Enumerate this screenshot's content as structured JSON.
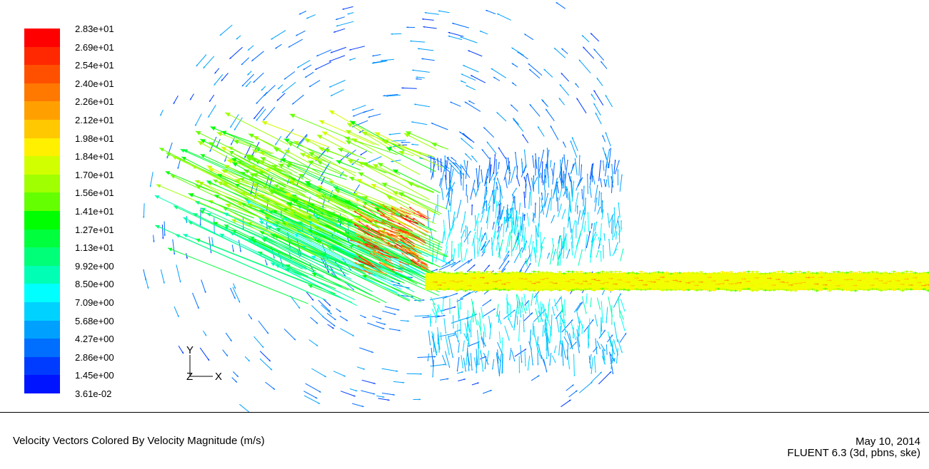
{
  "legend": {
    "labels": [
      "2.83e+01",
      "2.69e+01",
      "2.54e+01",
      "2.40e+01",
      "2.26e+01",
      "2.12e+01",
      "1.98e+01",
      "1.84e+01",
      "1.70e+01",
      "1.56e+01",
      "1.41e+01",
      "1.27e+01",
      "1.13e+01",
      "9.92e+00",
      "8.50e+00",
      "7.09e+00",
      "5.68e+00",
      "4.27e+00",
      "2.86e+00",
      "1.45e+00",
      "3.61e-02"
    ],
    "colors": [
      "#ff0000",
      "#ff2800",
      "#ff5000",
      "#ff7800",
      "#ffa000",
      "#ffc800",
      "#fff000",
      "#d2ff00",
      "#a0ff00",
      "#64ff00",
      "#00ff00",
      "#00ff3c",
      "#00ff78",
      "#00ffb4",
      "#00ffff",
      "#00d2ff",
      "#00a0ff",
      "#006eff",
      "#003cff",
      "#0014ff"
    ]
  },
  "axes": {
    "y": "Y",
    "z": "Z",
    "x": "X"
  },
  "caption": {
    "title": "Velocity Vectors Colored By Velocity Magnitude (m/s)",
    "date": "May 10, 2014",
    "solver": "FLUENT 6.3 (3d, pbns, ske)"
  }
}
